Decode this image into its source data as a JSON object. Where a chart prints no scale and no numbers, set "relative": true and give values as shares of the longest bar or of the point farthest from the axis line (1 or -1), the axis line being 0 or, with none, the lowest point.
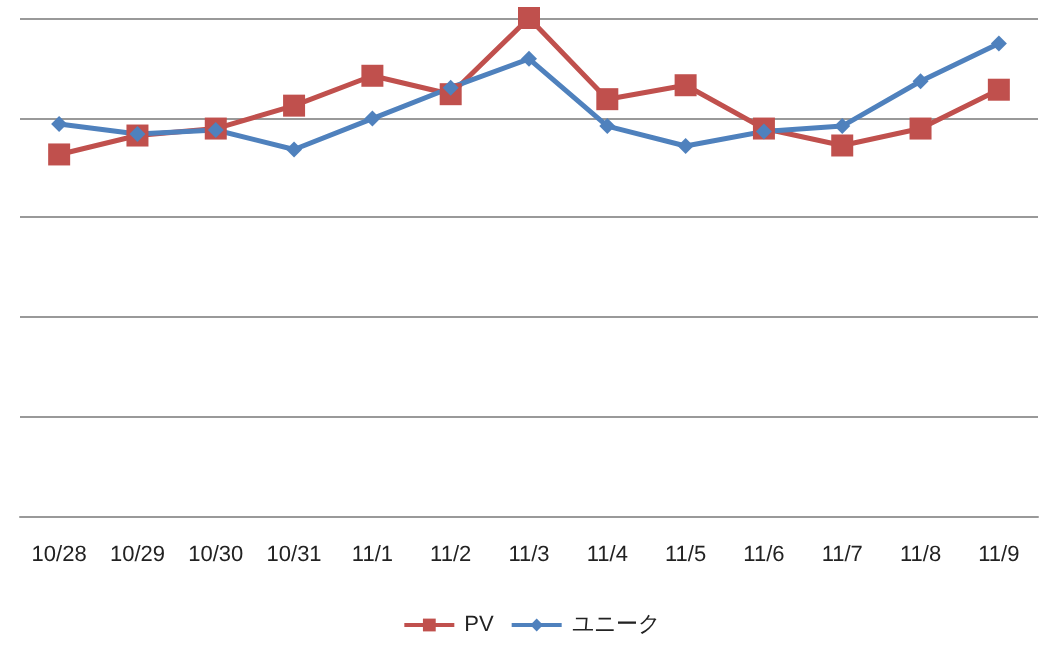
{
  "chart_data": {
    "type": "line",
    "relative": true,
    "categories": [
      "10/28",
      "10/29",
      "10/30",
      "10/31",
      "11/1",
      "11/2",
      "11/3",
      "11/4",
      "11/5",
      "11/6",
      "11/7",
      "11/8",
      "11/9"
    ],
    "series": [
      {
        "name": "PV",
        "color": "#c0504d",
        "marker": "square",
        "values": [
          0.726,
          0.764,
          0.778,
          0.824,
          0.884,
          0.847,
          1,
          0.837,
          0.865,
          0.778,
          0.744,
          0.778,
          0.856
        ]
      },
      {
        "name": "ユニーク",
        "color": "#4f81bd",
        "marker": "diamond",
        "values": [
          0.787,
          0.767,
          0.775,
          0.736,
          0.798,
          0.86,
          0.918,
          0.783,
          0.743,
          0.772,
          0.783,
          0.873,
          0.949
        ]
      }
    ],
    "grid": "y",
    "legend": "bottom"
  }
}
